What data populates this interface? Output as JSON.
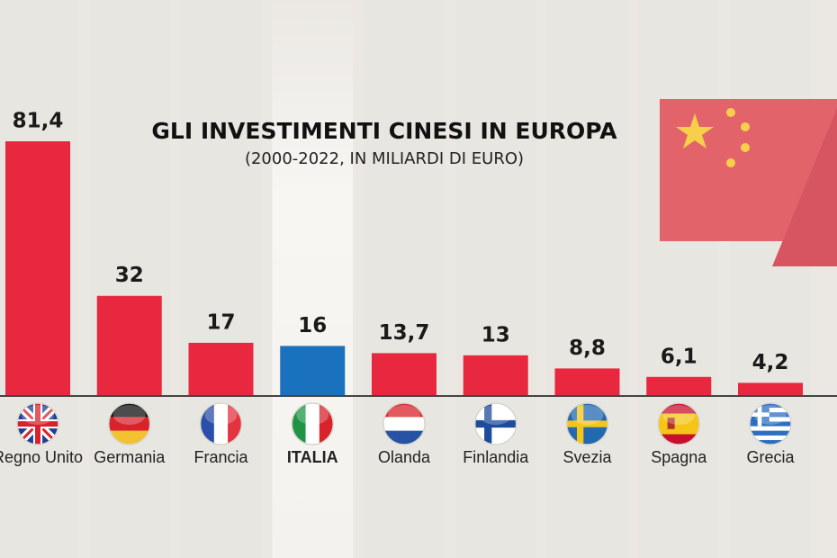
{
  "chart_data": {
    "type": "bar",
    "title": "GLI INVESTIMENTI CINESI IN EUROPA",
    "subtitle": "(2000-2022, IN MILIARDI DI EURO)",
    "categories": [
      "Regno Unito",
      "Germania",
      "Francia",
      "ITALIA",
      "Olanda",
      "Finlandia",
      "Svezia",
      "Spagna",
      "Grecia"
    ],
    "values": [
      81.4,
      32,
      17,
      16,
      13.7,
      13,
      8.8,
      6.1,
      4.2
    ],
    "value_labels": [
      "81,4",
      "32",
      "17",
      "16",
      "13,7",
      "13",
      "8,8",
      "6,1",
      "4,2"
    ],
    "colors": [
      "#e8283f",
      "#e8283f",
      "#e8283f",
      "#1a72bf",
      "#e8283f",
      "#e8283f",
      "#e8283f",
      "#e8283f",
      "#e8283f"
    ]
  }
}
